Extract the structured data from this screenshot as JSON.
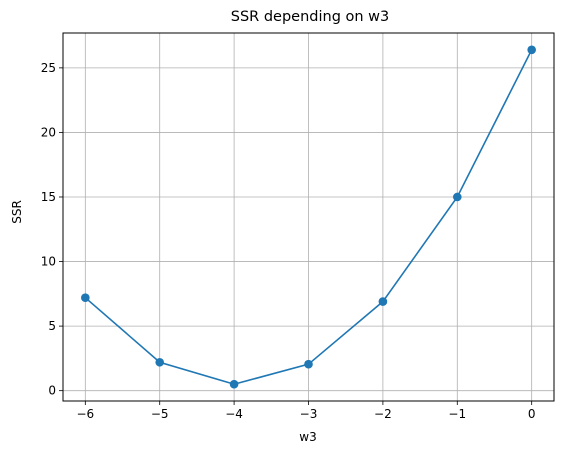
{
  "chart_data": {
    "type": "line",
    "title": "SSR depending on w3",
    "xlabel": "w3",
    "ylabel": "SSR",
    "x": [
      -6,
      -5,
      -4,
      -3,
      -2,
      -1,
      0
    ],
    "series": [
      {
        "values": [
          7.2,
          2.2,
          0.5,
          2.05,
          6.9,
          15.0,
          26.4
        ]
      }
    ],
    "xlim": [
      -6.3,
      0.3
    ],
    "ylim": [
      -0.8,
      27.7
    ],
    "xticks": [
      -6,
      -5,
      -4,
      -3,
      -2,
      -1,
      0
    ],
    "xtick_labels": [
      "−6",
      "−5",
      "−4",
      "−3",
      "−2",
      "−1",
      "0"
    ],
    "yticks": [
      0,
      5,
      10,
      15,
      20,
      25
    ],
    "ytick_labels": [
      "0",
      "5",
      "10",
      "15",
      "20",
      "25"
    ],
    "grid": true,
    "marker": "circle",
    "line_color": "#1f77b4",
    "grid_color": "#b0b0b0",
    "axis_color": "#000000"
  }
}
